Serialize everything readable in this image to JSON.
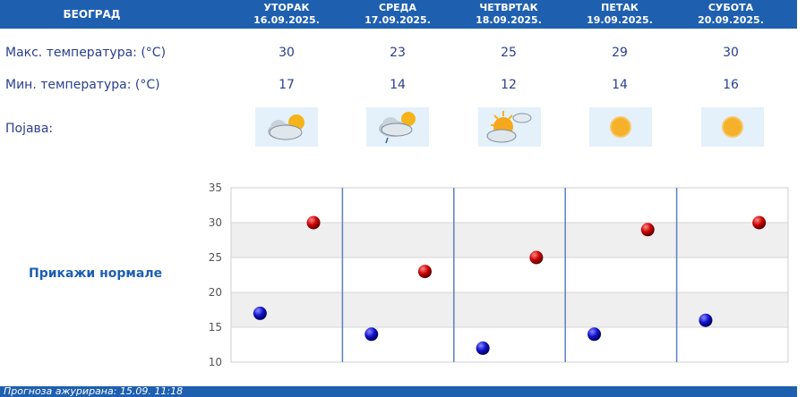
{
  "header": {
    "city": "БЕОГРАД",
    "days": [
      {
        "name": "УТОРАК",
        "date": "16.09.2025."
      },
      {
        "name": "СРЕДА",
        "date": "17.09.2025."
      },
      {
        "name": "ЧЕТВРТАК",
        "date": "18.09.2025."
      },
      {
        "name": "ПЕТАК",
        "date": "19.09.2025."
      },
      {
        "name": "СУБОТА",
        "date": "20.09.2025."
      }
    ]
  },
  "rows": {
    "max_label": "Макс. температура: (°C)",
    "min_label": "Мин. температура: (°C)",
    "weather_label": "Појава:"
  },
  "max_temps": [
    "30",
    "23",
    "25",
    "29",
    "30"
  ],
  "min_temps": [
    "17",
    "14",
    "12",
    "14",
    "16"
  ],
  "weather_icons": [
    "cloudy-sun-icon",
    "cloud-rain-sun-icon",
    "partly-sunny-icon",
    "sun-icon",
    "sun-icon"
  ],
  "normals_label": "Прикажи нормале",
  "footer": "Прогноза ажурирана: 15.09. 11:18",
  "colors": {
    "header": "#1e5fb0",
    "max": "#cc0000",
    "min": "#1111cc",
    "text": "#2a3f8f"
  },
  "chart_data": {
    "type": "scatter",
    "categories": [
      "УТОРАК",
      "СРЕДА",
      "ЧЕТВРТАК",
      "ПЕТАК",
      "СУБОТА"
    ],
    "series": [
      {
        "values": [
          17,
          14,
          12,
          14,
          16
        ]
      },
      {
        "values": [
          30,
          23,
          25,
          29,
          30
        ]
      }
    ],
    "ylim": [
      10,
      35
    ],
    "yticks": [
      "10",
      "15",
      "20",
      "25",
      "30",
      "35"
    ],
    "grid": true
  }
}
